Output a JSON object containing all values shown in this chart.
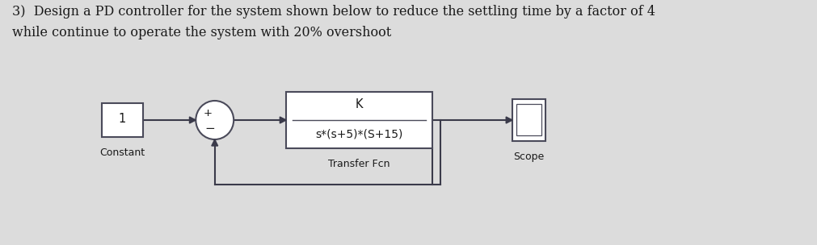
{
  "title_line1": "3)  Design a PD controller for the system shown below to reduce the settling time by a factor of 4",
  "title_line2": "while continue to operate the system with 20% overshoot",
  "bg_color": "#dcdcdc",
  "block_color": "#ffffff",
  "block_edge_color": "#4a4a5a",
  "line_color": "#3a3a4a",
  "text_color": "#1a1a1a",
  "constant_label": "1",
  "constant_block_label": "Constant",
  "transfer_num": "K",
  "transfer_den": "s*(s+5)*(S+15)",
  "transfer_label": "Transfer Fcn",
  "scope_label": "Scope",
  "sum_plus": "+",
  "sum_minus": "−",
  "title_fontsize": 11.5,
  "label_fontsize": 9.0,
  "block_fontsize": 10.5,
  "den_fontsize": 10.0
}
